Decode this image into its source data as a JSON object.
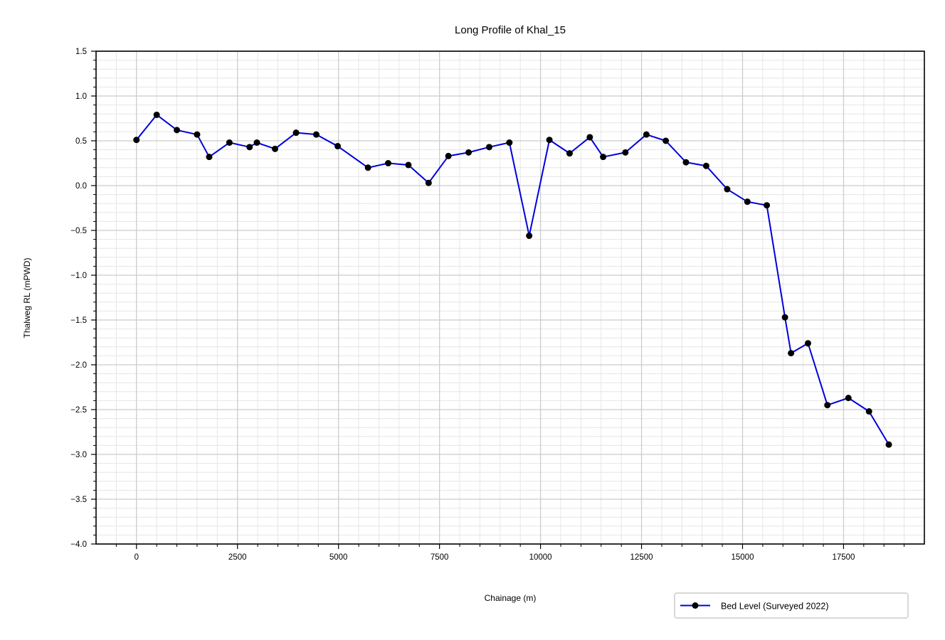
{
  "chart_data": {
    "type": "line",
    "title": "Long Profile of Khal_15",
    "xlabel": "Chainage (m)",
    "ylabel": "Thalweg RL (mPWD)",
    "xlim": [
      -1000,
      19500
    ],
    "ylim": [
      -4.0,
      1.5
    ],
    "x_ticks": [
      0,
      2500,
      5000,
      7500,
      10000,
      12500,
      15000,
      17500
    ],
    "x_tick_labels": [
      "0",
      "2500",
      "5000",
      "7500",
      "10000",
      "12500",
      "15000",
      "17500"
    ],
    "y_ticks": [
      -4.0,
      -3.5,
      -3.0,
      -2.5,
      -2.0,
      -1.5,
      -1.0,
      -0.5,
      0.0,
      0.5,
      1.0,
      1.5
    ],
    "y_tick_labels": [
      "−4.0",
      "−3.5",
      "−3.0",
      "−2.5",
      "−2.0",
      "−1.5",
      "−1.0",
      "−0.5",
      "0.0",
      "0.5",
      "1.0",
      "1.5"
    ],
    "grid": true,
    "minor_grid": true,
    "legend_position": "below-right",
    "colors": {
      "line": "#0000dd",
      "marker": "#000000"
    },
    "series": [
      {
        "name": "Bed Level (Surveyed 2022)",
        "x": [
          0,
          500,
          1000,
          1500,
          1800,
          2300,
          2800,
          2980,
          3430,
          3950,
          4450,
          4980,
          5730,
          6230,
          6730,
          7230,
          7720,
          8220,
          8730,
          9230,
          9720,
          10220,
          10720,
          11220,
          11550,
          12100,
          12620,
          13100,
          13600,
          14100,
          14620,
          15120,
          15600,
          16050,
          16200,
          16620,
          17100,
          17620,
          18130,
          18620
        ],
        "y": [
          0.51,
          0.79,
          0.62,
          0.57,
          0.32,
          0.48,
          0.43,
          0.48,
          0.41,
          0.59,
          0.57,
          0.44,
          0.2,
          0.25,
          0.23,
          0.03,
          0.33,
          0.37,
          0.43,
          0.48,
          -0.56,
          0.51,
          0.36,
          0.54,
          0.32,
          0.37,
          0.57,
          0.5,
          0.26,
          0.22,
          -0.04,
          -0.18,
          -0.22,
          -1.47,
          -1.87,
          -1.76,
          -2.45,
          -2.37,
          -2.52,
          -2.89
        ]
      }
    ]
  }
}
